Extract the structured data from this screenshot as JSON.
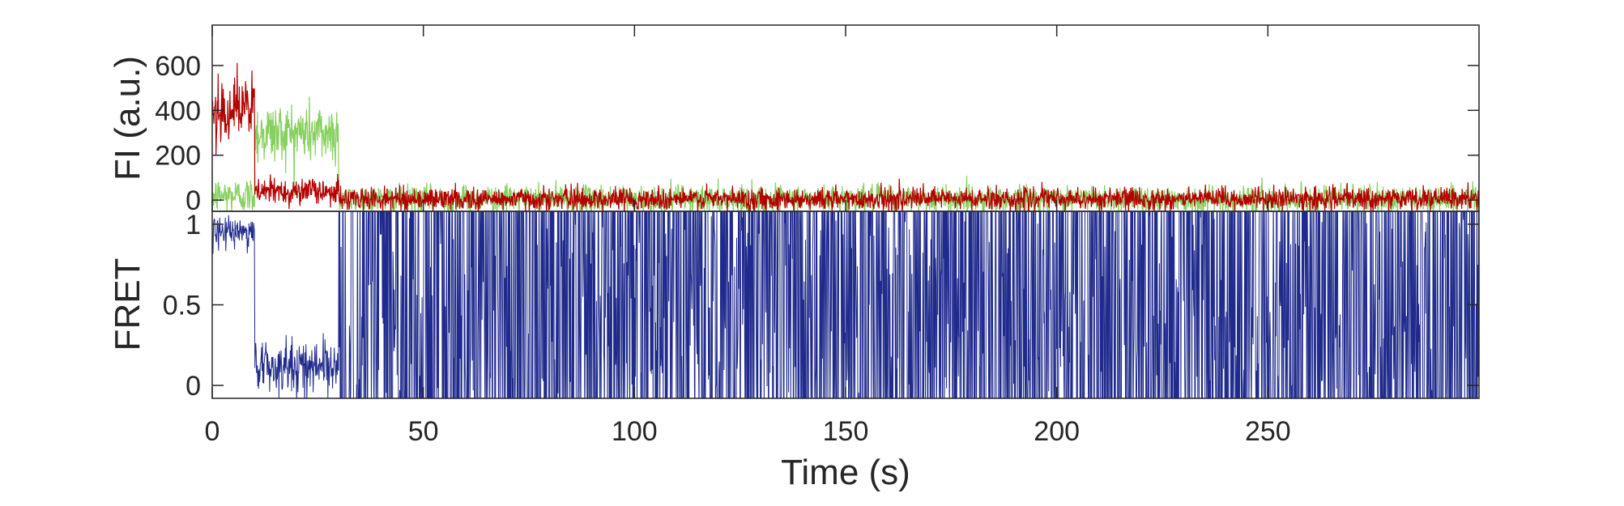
{
  "chart_data": [
    {
      "type": "line",
      "panel": "fluorescence",
      "ylabel": "FI (a.u.)",
      "xlim": [
        0,
        300
      ],
      "ylim": [
        -50,
        780
      ],
      "yticks": [
        0,
        200,
        400,
        600
      ],
      "ytick_labels": [
        "0",
        "200",
        "400",
        "600"
      ],
      "sample_interval_s": 0.1,
      "series": [
        {
          "color": "#b40000",
          "segments": [
            {
              "x0": 0,
              "x1": 10,
              "mean": 410,
              "noise": 70
            },
            {
              "x0": 10,
              "x1": 30,
              "mean": 40,
              "noise": 30
            },
            {
              "x0": 30,
              "x1": 300,
              "mean": 5,
              "noise": 25
            }
          ]
        },
        {
          "color": "#86d05e",
          "segments": [
            {
              "x0": 0,
              "x1": 10,
              "mean": 20,
              "noise": 40
            },
            {
              "x0": 10,
              "x1": 30,
              "mean": 300,
              "noise": 70
            },
            {
              "x0": 30,
              "x1": 300,
              "mean": 5,
              "noise": 30
            }
          ]
        }
      ]
    },
    {
      "type": "line",
      "panel": "fret",
      "ylabel": "FRET",
      "xlabel": "Time (s)",
      "xlim": [
        0,
        300
      ],
      "ylim": [
        -0.08,
        1.08
      ],
      "yticks": [
        0,
        0.5,
        1
      ],
      "ytick_labels": [
        "0",
        "0.5",
        "1"
      ],
      "xticks": [
        0,
        50,
        100,
        150,
        200,
        250
      ],
      "xtick_labels": [
        "0",
        "50",
        "100",
        "150",
        "200",
        "250"
      ],
      "series": [
        {
          "color": "#1f2a8c",
          "segments": [
            {
              "x0": 0,
              "x1": 10,
              "level": 0.95,
              "noise": 0.05
            },
            {
              "x0": 10,
              "x1": 30,
              "level": 0.12,
              "noise": 0.08
            },
            {
              "x0": 30,
              "x1": 300,
              "level": 0.5,
              "noise": 1.0
            }
          ]
        }
      ]
    }
  ]
}
